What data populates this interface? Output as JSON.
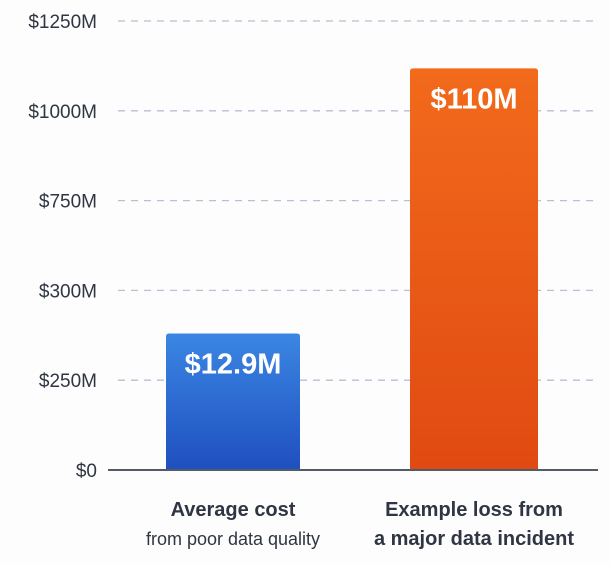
{
  "chart_data": {
    "type": "bar",
    "title": "",
    "xlabel": "",
    "ylabel": "",
    "y_tick_labels": [
      "$0",
      "$250M",
      "$300M",
      "$750M",
      "$1000M",
      "$1250M"
    ],
    "y_tick_values": [
      0,
      250,
      300,
      750,
      1000,
      1250
    ],
    "ylim": [
      0,
      1250
    ],
    "grid": true,
    "categories": [
      {
        "title": "Average cost",
        "subtitle": "from poor data quality"
      },
      {
        "title": "Example loss from",
        "subtitle": "a major data incident"
      }
    ],
    "values": [
      12.9,
      110
    ],
    "data_labels": [
      "$12.9M",
      "$110M"
    ],
    "plotted_levels_axis_units": [
      276,
      1118
    ],
    "colors": [
      [
        "#3b86e3",
        "#1f4fbf"
      ],
      [
        "#f26a1b",
        "#e04a12"
      ]
    ]
  }
}
